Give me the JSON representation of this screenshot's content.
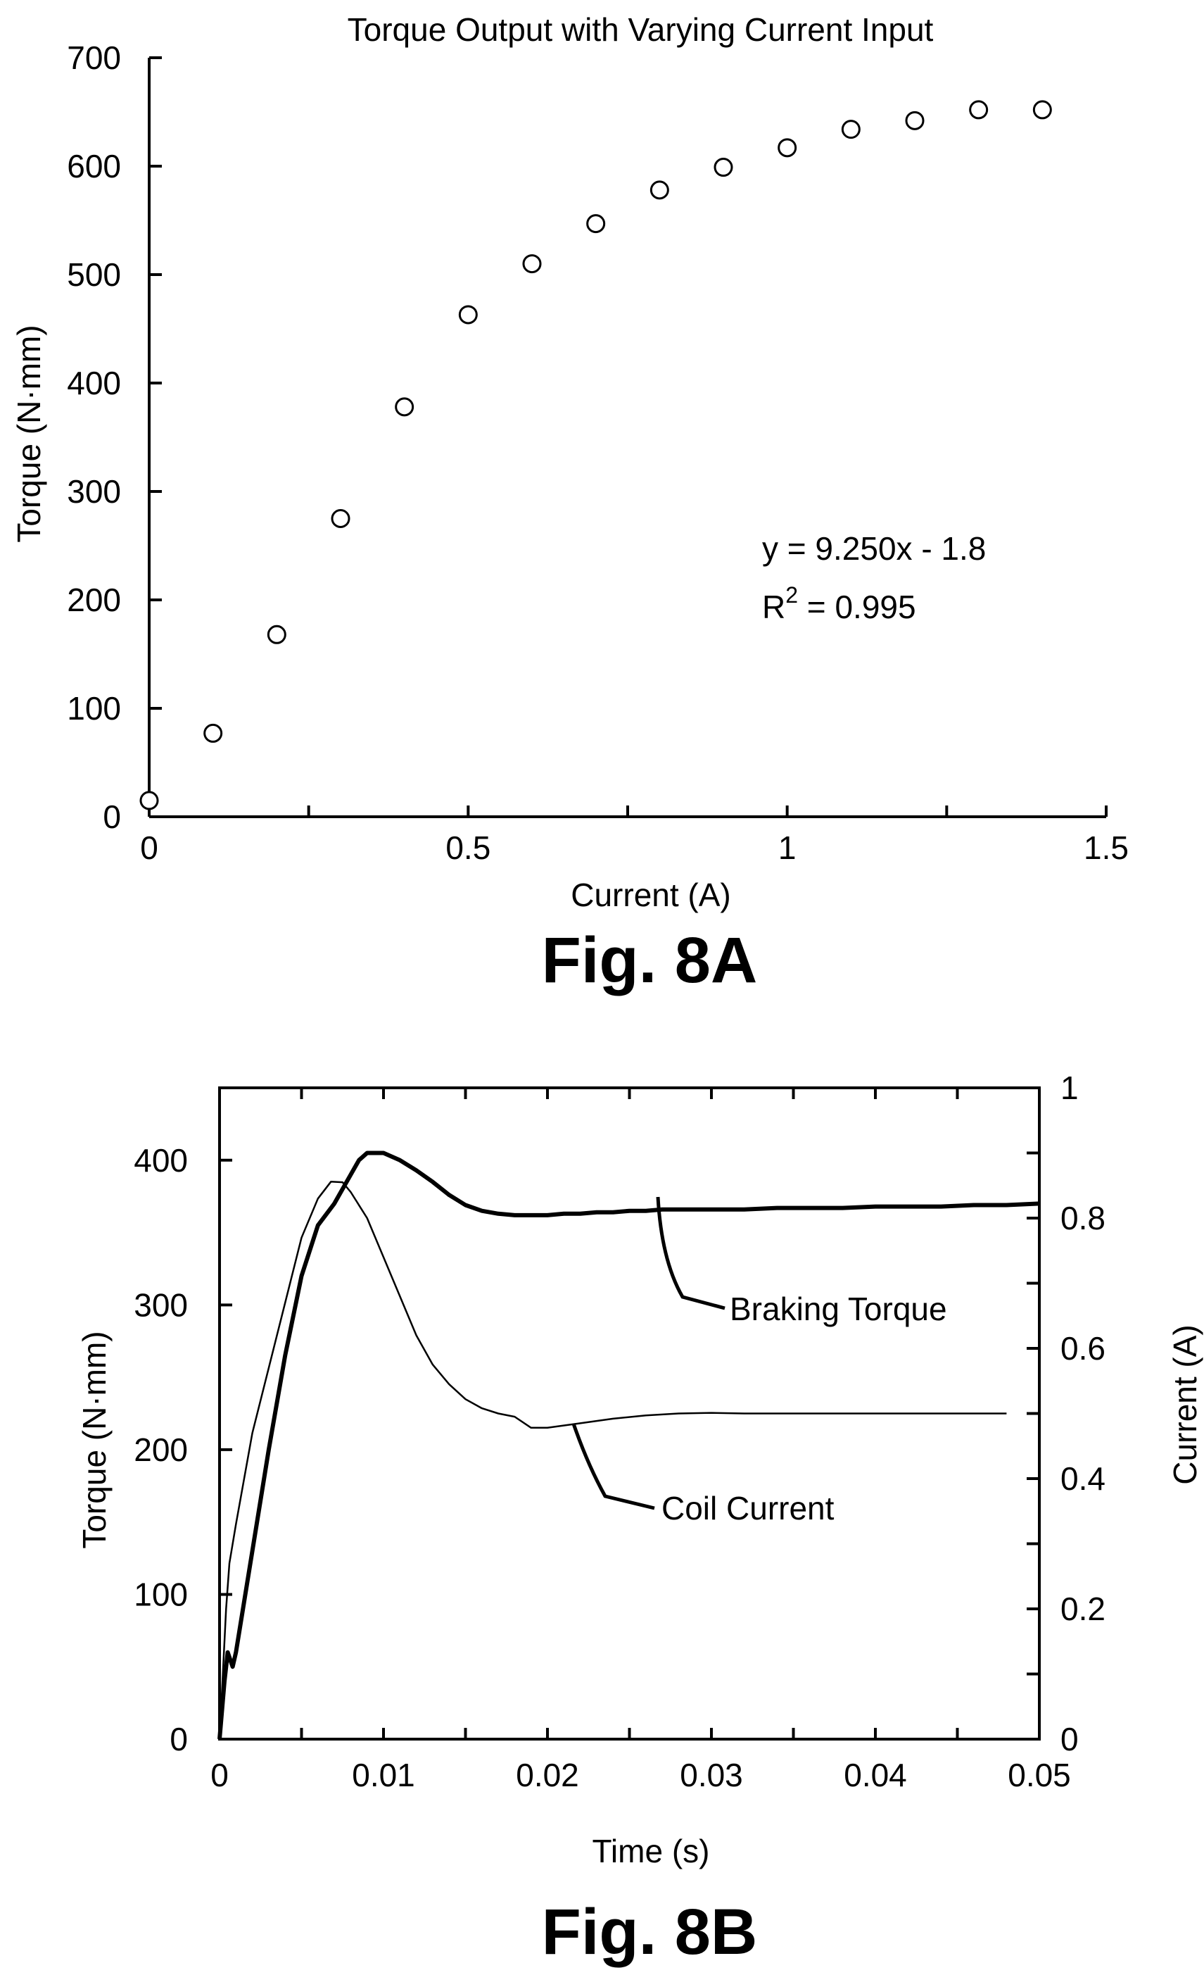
{
  "chart_data": [
    {
      "id": "fig-8a",
      "type": "scatter",
      "title": "Torque Output with Varying Current Input",
      "xlabel": "Current (A)",
      "ylabel": "Torque (N·mm)",
      "xlim": [
        0,
        1.5
      ],
      "ylim": [
        0,
        700
      ],
      "xticks": [
        "0",
        "0.5",
        "1",
        "1.5"
      ],
      "yticks": [
        "0",
        "100",
        "200",
        "300",
        "400",
        "500",
        "600",
        "700"
      ],
      "grid": false,
      "marker": "open-circle",
      "points": [
        {
          "x": 0.0,
          "y": 15
        },
        {
          "x": 0.1,
          "y": 77
        },
        {
          "x": 0.2,
          "y": 168
        },
        {
          "x": 0.3,
          "y": 275
        },
        {
          "x": 0.4,
          "y": 378
        },
        {
          "x": 0.5,
          "y": 463
        },
        {
          "x": 0.6,
          "y": 510
        },
        {
          "x": 0.7,
          "y": 547
        },
        {
          "x": 0.8,
          "y": 578
        },
        {
          "x": 0.9,
          "y": 599
        },
        {
          "x": 1.0,
          "y": 617
        },
        {
          "x": 1.1,
          "y": 634
        },
        {
          "x": 1.2,
          "y": 642
        },
        {
          "x": 1.3,
          "y": 652
        },
        {
          "x": 1.4,
          "y": 652
        }
      ],
      "annotation_fit": "y = 9.250x - 1.8",
      "annotation_r2_base": "R",
      "annotation_r2_sup": "2",
      "annotation_r2_rest": " = 0.995",
      "caption": "Fig. 8A"
    },
    {
      "id": "fig-8b",
      "type": "line",
      "xlabel": "Time (s)",
      "ylabel": "Torque (N·mm)",
      "y2label": "Current (A)",
      "xlim": [
        0,
        0.05
      ],
      "ylim": [
        0,
        450
      ],
      "y2lim": [
        0,
        1
      ],
      "xticks": [
        "0",
        "0.01",
        "0.02",
        "0.03",
        "0.04",
        "0.05"
      ],
      "yticks": [
        "0",
        "100",
        "200",
        "300",
        "400"
      ],
      "y2ticks": [
        "0",
        "0.2",
        "0.4",
        "0.6",
        "0.8",
        "1"
      ],
      "grid": false,
      "series": [
        {
          "name": "Braking Torque",
          "axis": "left",
          "x": [
            0,
            0.0003,
            0.0005,
            0.0008,
            0.001,
            0.002,
            0.003,
            0.004,
            0.005,
            0.006,
            0.007,
            0.008,
            0.0085,
            0.009,
            0.0095,
            0.01,
            0.011,
            0.012,
            0.013,
            0.014,
            0.015,
            0.016,
            0.017,
            0.018,
            0.019,
            0.02,
            0.021,
            0.022,
            0.023,
            0.024,
            0.025,
            0.026,
            0.027,
            0.028,
            0.03,
            0.032,
            0.034,
            0.036,
            0.038,
            0.04,
            0.042,
            0.044,
            0.046,
            0.048,
            0.05
          ],
          "y": [
            0,
            40,
            60,
            50,
            60,
            130,
            200,
            265,
            320,
            355,
            370,
            390,
            400,
            405,
            405,
            405,
            400,
            393,
            385,
            376,
            369,
            365,
            363,
            362,
            362,
            362,
            363,
            363,
            364,
            364,
            365,
            365,
            366,
            366,
            366,
            366,
            367,
            367,
            367,
            368,
            368,
            368,
            369,
            369,
            370
          ]
        },
        {
          "name": "Coil Current",
          "axis": "right",
          "x": [
            0,
            0.0002,
            0.0004,
            0.0006,
            0.001,
            0.002,
            0.003,
            0.004,
            0.005,
            0.006,
            0.0068,
            0.0075,
            0.008,
            0.009,
            0.01,
            0.011,
            0.012,
            0.013,
            0.014,
            0.015,
            0.016,
            0.017,
            0.018,
            0.019,
            0.02,
            0.022,
            0.024,
            0.026,
            0.028,
            0.03,
            0.032,
            0.034,
            0.036,
            0.038,
            0.04,
            0.042,
            0.044,
            0.046,
            0.048
          ],
          "y": [
            0.0,
            0.1,
            0.2,
            0.27,
            0.33,
            0.47,
            0.57,
            0.67,
            0.77,
            0.83,
            0.856,
            0.855,
            0.84,
            0.8,
            0.74,
            0.68,
            0.62,
            0.575,
            0.545,
            0.522,
            0.508,
            0.5,
            0.495,
            0.478,
            0.478,
            0.485,
            0.492,
            0.497,
            0.5,
            0.501,
            0.5,
            0.5,
            0.5,
            0.5,
            0.5,
            0.5,
            0.5,
            0.5,
            0.5
          ]
        }
      ],
      "labels": {
        "braking_torque": "Braking Torque",
        "coil_current": "Coil Current"
      },
      "caption": "Fig. 8B"
    }
  ]
}
